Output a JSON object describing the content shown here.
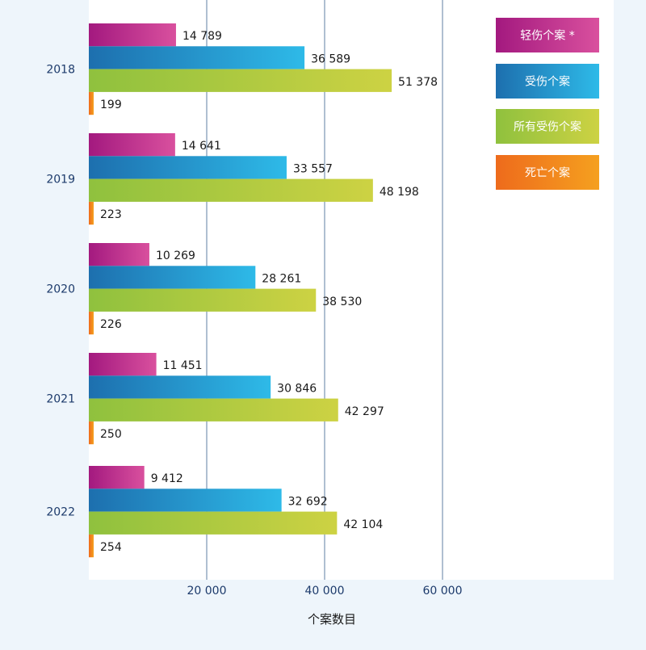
{
  "chart_data": {
    "type": "bar",
    "orientation": "horizontal",
    "categories": [
      "2018",
      "2019",
      "2020",
      "2021",
      "2022"
    ],
    "series": [
      {
        "name": "轻伤个案 *",
        "values": [
          14789,
          14641,
          10269,
          11451,
          9412
        ],
        "labels": [
          "14 789",
          "14 641",
          "10 269",
          "11 451",
          "9 412"
        ],
        "colors": [
          "#a3197f",
          "#d9509e"
        ]
      },
      {
        "name": "受伤个案",
        "values": [
          36589,
          33557,
          28261,
          30846,
          32692
        ],
        "labels": [
          "36 589",
          "33 557",
          "28 261",
          "30 846",
          "32 692"
        ],
        "colors": [
          "#1d6fae",
          "#2ebae8"
        ]
      },
      {
        "name": "所有受伤个案",
        "values": [
          51378,
          48198,
          38530,
          42297,
          42104
        ],
        "labels": [
          "51 378",
          "48 198",
          "38 530",
          "42 297",
          "42 104"
        ],
        "colors": [
          "#8fc13e",
          "#cdd243"
        ]
      },
      {
        "name": "死亡个案",
        "values": [
          199,
          223,
          226,
          250,
          254
        ],
        "labels": [
          "199",
          "223",
          "226",
          "250",
          "254"
        ],
        "colors": [
          "#ee6b1c",
          "#f5a01f"
        ]
      }
    ],
    "x_ticks": [
      20000,
      40000,
      60000
    ],
    "x_tick_labels": [
      "20 000",
      "40 000",
      "60 000"
    ],
    "xlim": [
      0,
      89000
    ],
    "xlabel": "个案数目",
    "legend_position": "top-right",
    "grid": true,
    "label_color": "#1a1a1a",
    "tick_color": "#1c3a6b"
  }
}
